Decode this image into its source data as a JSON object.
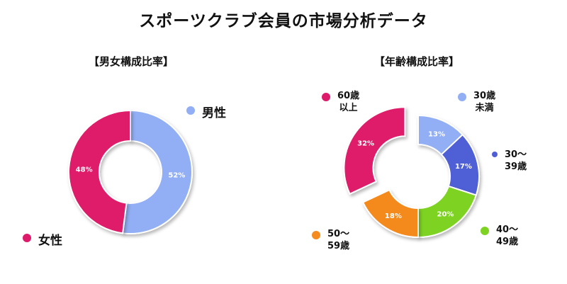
{
  "title": "スポーツクラブ会員の市場分析データ",
  "chart_data": [
    {
      "type": "pie",
      "subtitle": "【男女構成比率】",
      "labels": [
        "男性",
        "女性"
      ],
      "values": [
        52,
        48
      ],
      "value_labels": [
        "52%",
        "48%"
      ],
      "colors": [
        "#92aff5",
        "#de1a6a"
      ],
      "donut": true,
      "start": "top, clockwise"
    },
    {
      "type": "pie",
      "subtitle": "【年齢構成比率】",
      "labels": [
        "30歳\n未満",
        "30〜\n39歳",
        "40〜\n49歳",
        "50〜\n59歳",
        "60歳\n以上"
      ],
      "values": [
        13,
        17,
        20,
        18,
        32
      ],
      "value_labels": [
        "13%",
        "17%",
        "20%",
        "18%",
        "32%"
      ],
      "colors": [
        "#92aff5",
        "#4f5ed6",
        "#7ed322",
        "#f58a1f",
        "#de1a6a"
      ],
      "donut": true,
      "exploded": "60歳\n以上",
      "start": "top, clockwise"
    }
  ]
}
